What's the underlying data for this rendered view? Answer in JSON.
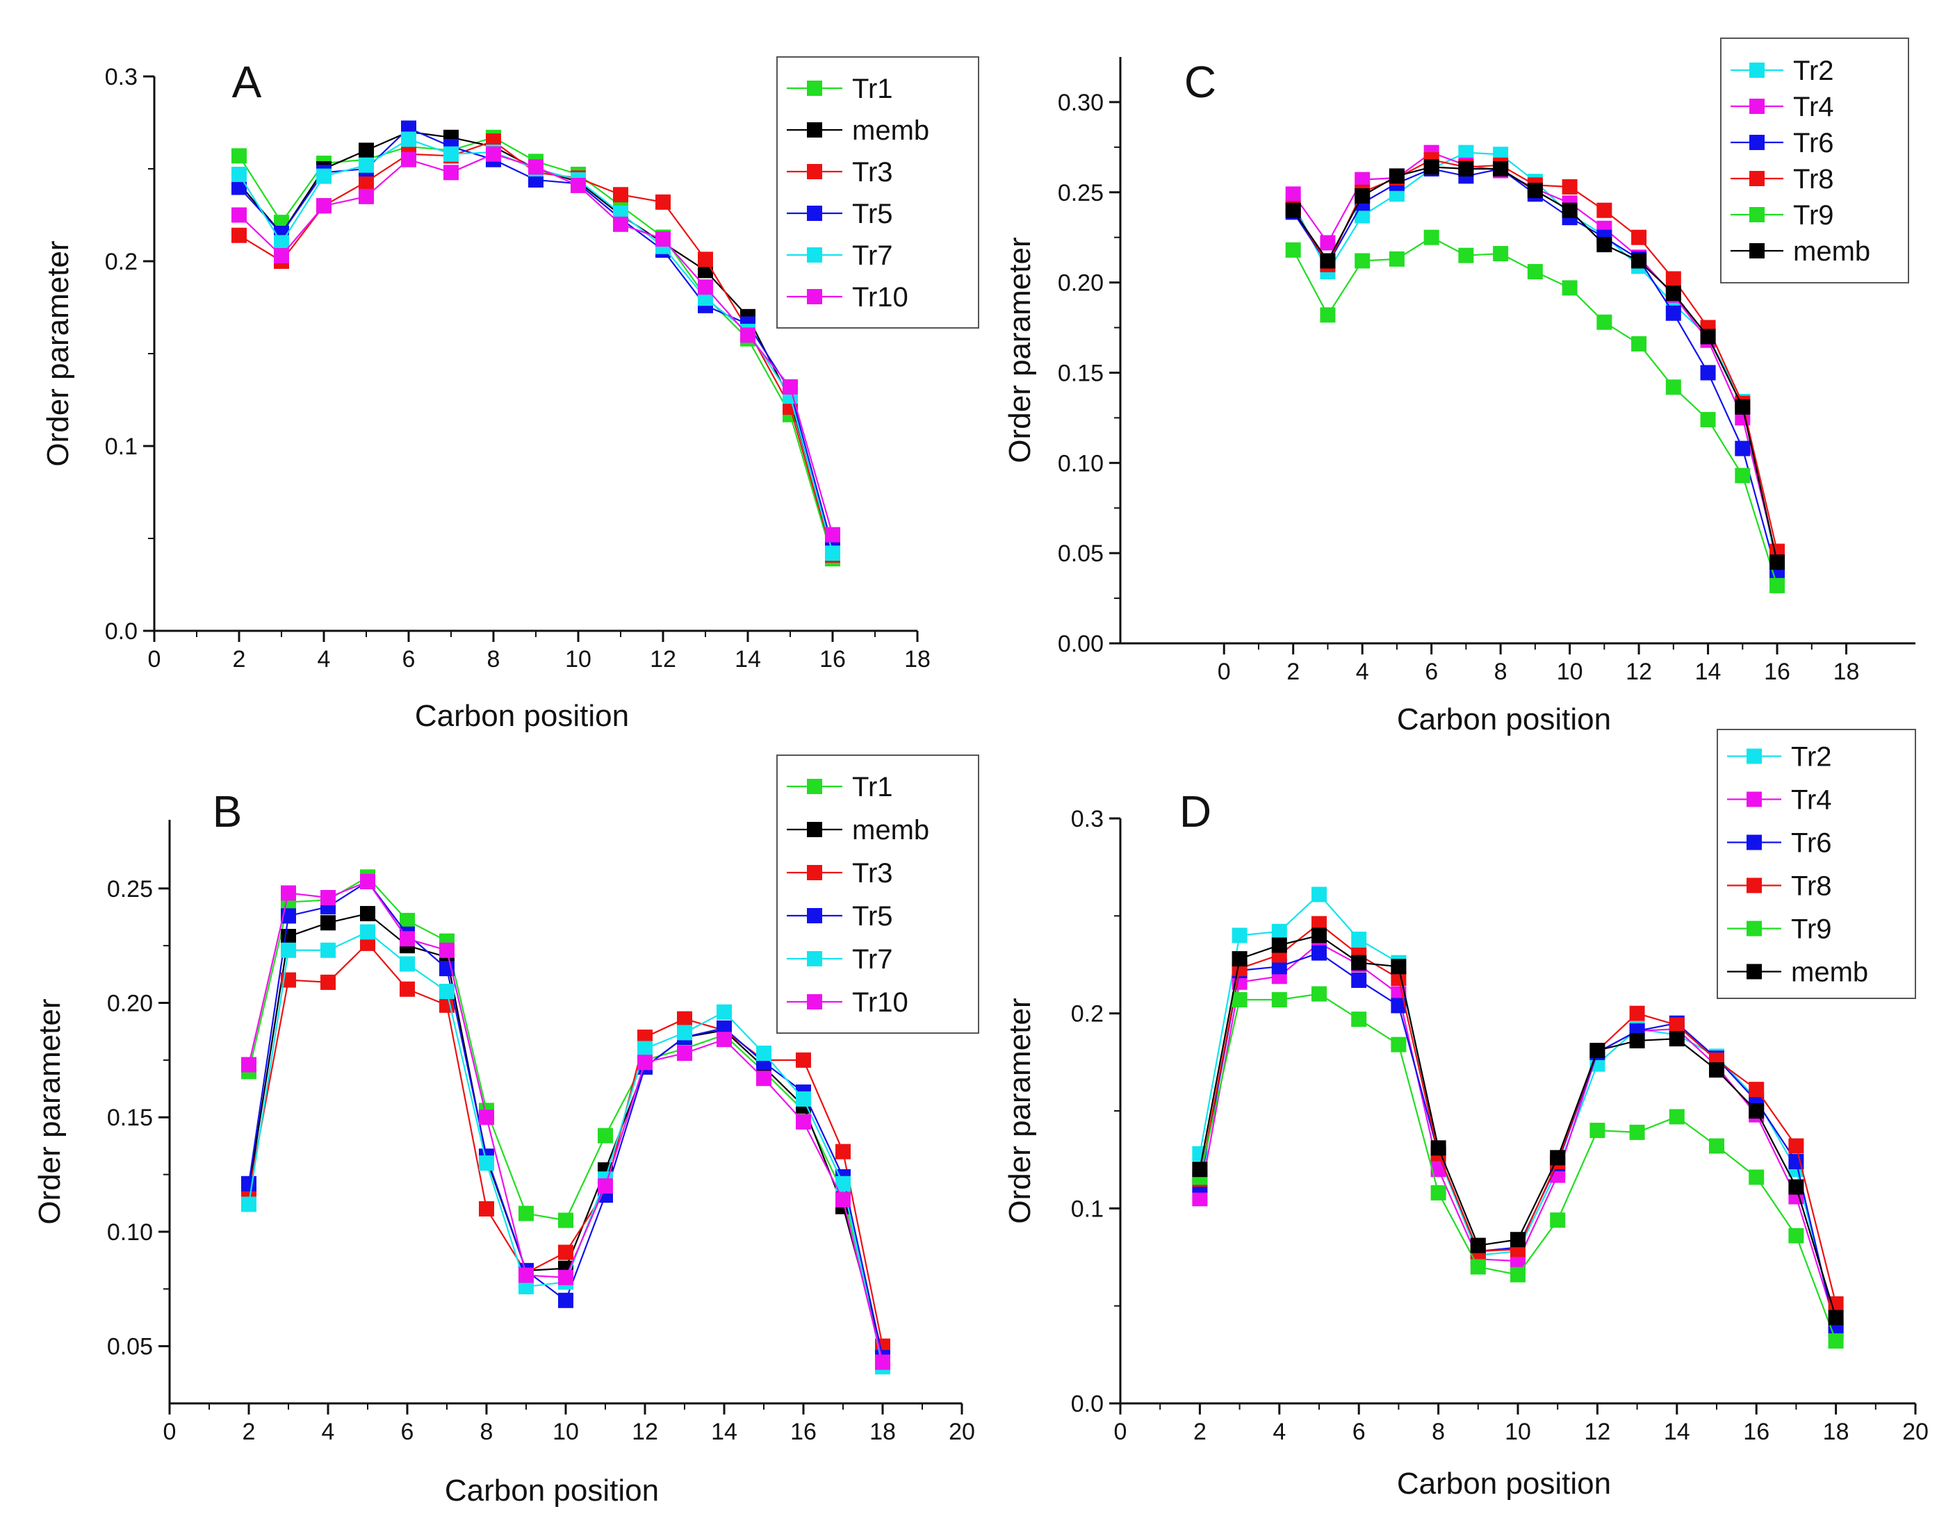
{
  "chart_data": [
    {
      "id": "A",
      "type": "line",
      "label": "A",
      "xlabel": "Carbon position",
      "ylabel": "Order parameter",
      "xlim": [
        0,
        18
      ],
      "ylim": [
        0.0,
        0.3
      ],
      "xticks": [
        "0",
        "2",
        "4",
        "6",
        "8",
        "10",
        "12",
        "14",
        "16",
        "18"
      ],
      "yticks": [
        "0.0",
        "0.1",
        "0.2",
        "0.3"
      ],
      "x": [
        2,
        3,
        4,
        5,
        6,
        7,
        8,
        9,
        10,
        11,
        12,
        13,
        14,
        15,
        16
      ],
      "series": [
        {
          "name": "Tr1",
          "color": "#22dd22",
          "values": [
            0.257,
            0.221,
            0.253,
            0.255,
            0.262,
            0.26,
            0.267,
            0.254,
            0.247,
            0.23,
            0.213,
            0.181,
            0.158,
            0.117,
            0.039
          ]
        },
        {
          "name": "memb",
          "color": "#000000",
          "values": [
            0.242,
            0.215,
            0.25,
            0.26,
            0.27,
            0.267,
            0.262,
            0.25,
            0.243,
            0.225,
            0.21,
            0.195,
            0.17,
            0.125,
            0.044
          ]
        },
        {
          "name": "Tr3",
          "color": "#ee1111",
          "values": [
            0.214,
            0.2,
            0.23,
            0.243,
            0.258,
            0.257,
            0.265,
            0.248,
            0.245,
            0.236,
            0.232,
            0.201,
            0.163,
            0.121,
            0.041
          ]
        },
        {
          "name": "Tr5",
          "color": "#1111ee",
          "values": [
            0.24,
            0.215,
            0.248,
            0.25,
            0.272,
            0.262,
            0.255,
            0.244,
            0.242,
            0.223,
            0.206,
            0.176,
            0.166,
            0.13,
            0.045
          ]
        },
        {
          "name": "Tr7",
          "color": "#11e4ee",
          "values": [
            0.247,
            0.21,
            0.246,
            0.252,
            0.266,
            0.258,
            0.259,
            0.25,
            0.244,
            0.226,
            0.208,
            0.18,
            0.162,
            0.127,
            0.042
          ]
        },
        {
          "name": "Tr10",
          "color": "#ee11ee",
          "values": [
            0.225,
            0.203,
            0.23,
            0.235,
            0.255,
            0.248,
            0.258,
            0.251,
            0.241,
            0.22,
            0.212,
            0.186,
            0.16,
            0.132,
            0.052
          ]
        }
      ]
    },
    {
      "id": "B",
      "type": "line",
      "label": "B",
      "xlabel": "Carbon position",
      "ylabel": "Order parameter",
      "xlim": [
        0,
        20
      ],
      "ylim": [
        0.025,
        0.28
      ],
      "xticks": [
        "0",
        "2",
        "4",
        "6",
        "8",
        "10",
        "12",
        "14",
        "16",
        "18",
        "20"
      ],
      "yticks": [
        "0.05",
        "0.10",
        "0.15",
        "0.20",
        "0.25"
      ],
      "x": [
        2,
        3,
        4,
        5,
        6,
        7,
        8,
        9,
        10,
        11,
        12,
        13,
        14,
        15,
        16,
        17,
        18
      ],
      "series": [
        {
          "name": "Tr1",
          "color": "#22dd22",
          "values": [
            0.17,
            0.244,
            0.245,
            0.255,
            0.236,
            0.227,
            0.153,
            0.108,
            0.105,
            0.142,
            0.175,
            0.18,
            0.186,
            0.17,
            0.153,
            0.117,
            0.046
          ]
        },
        {
          "name": "memb",
          "color": "#000000",
          "values": [
            0.118,
            0.229,
            0.235,
            0.239,
            0.225,
            0.22,
            0.132,
            0.083,
            0.084,
            0.127,
            0.172,
            0.185,
            0.188,
            0.172,
            0.155,
            0.111,
            0.047
          ]
        },
        {
          "name": "Tr3",
          "color": "#ee1111",
          "values": [
            0.117,
            0.21,
            0.209,
            0.226,
            0.206,
            0.199,
            0.11,
            0.082,
            0.091,
            0.118,
            0.185,
            0.193,
            0.188,
            0.175,
            0.175,
            0.135,
            0.05
          ]
        },
        {
          "name": "Tr5",
          "color": "#1111ee",
          "values": [
            0.121,
            0.238,
            0.242,
            0.253,
            0.23,
            0.215,
            0.133,
            0.083,
            0.07,
            0.116,
            0.172,
            0.185,
            0.189,
            0.174,
            0.161,
            0.124,
            0.045
          ]
        },
        {
          "name": "Tr7",
          "color": "#11e4ee",
          "values": [
            0.112,
            0.223,
            0.223,
            0.231,
            0.217,
            0.205,
            0.13,
            0.076,
            0.078,
            0.123,
            0.18,
            0.187,
            0.196,
            0.178,
            0.158,
            0.121,
            0.041
          ]
        },
        {
          "name": "Tr10",
          "color": "#ee11ee",
          "values": [
            0.173,
            0.248,
            0.246,
            0.253,
            0.228,
            0.223,
            0.15,
            0.081,
            0.08,
            0.12,
            0.174,
            0.178,
            0.184,
            0.167,
            0.148,
            0.114,
            0.043
          ]
        }
      ]
    },
    {
      "id": "C",
      "type": "line",
      "label": "C",
      "xlabel": "Carbon position",
      "ylabel": "Order parameter",
      "xlim": [
        -3,
        20
      ],
      "ylim": [
        0.0,
        0.325
      ],
      "xticks": [
        "0",
        "2",
        "4",
        "6",
        "8",
        "10",
        "12",
        "14",
        "16",
        "18"
      ],
      "yticks": [
        "0.00",
        "0.05",
        "0.10",
        "0.15",
        "0.20",
        "0.25",
        "0.30"
      ],
      "x": [
        2,
        3,
        4,
        5,
        6,
        7,
        8,
        9,
        10,
        11,
        12,
        13,
        14,
        15,
        16
      ],
      "series": [
        {
          "name": "Tr2",
          "color": "#11e4ee",
          "values": [
            0.244,
            0.206,
            0.237,
            0.249,
            0.263,
            0.272,
            0.271,
            0.256,
            0.238,
            0.226,
            0.209,
            0.188,
            0.17,
            0.134,
            0.042
          ]
        },
        {
          "name": "Tr4",
          "color": "#ee11ee",
          "values": [
            0.249,
            0.222,
            0.257,
            0.258,
            0.272,
            0.265,
            0.262,
            0.252,
            0.244,
            0.23,
            0.214,
            0.193,
            0.168,
            0.125,
            0.046
          ]
        },
        {
          "name": "Tr6",
          "color": "#1111ee",
          "values": [
            0.239,
            0.21,
            0.244,
            0.255,
            0.263,
            0.259,
            0.263,
            0.249,
            0.236,
            0.225,
            0.213,
            0.183,
            0.15,
            0.108,
            0.038
          ]
        },
        {
          "name": "Tr8",
          "color": "#ee1111",
          "values": [
            0.241,
            0.21,
            0.25,
            0.258,
            0.268,
            0.264,
            0.265,
            0.254,
            0.253,
            0.24,
            0.225,
            0.202,
            0.175,
            0.133,
            0.051
          ]
        },
        {
          "name": "Tr9",
          "color": "#22dd22",
          "values": [
            0.218,
            0.182,
            0.212,
            0.213,
            0.225,
            0.215,
            0.216,
            0.206,
            0.197,
            0.178,
            0.166,
            0.142,
            0.124,
            0.093,
            0.032
          ]
        },
        {
          "name": "memb",
          "color": "#000000",
          "values": [
            0.24,
            0.212,
            0.248,
            0.259,
            0.264,
            0.263,
            0.263,
            0.251,
            0.24,
            0.221,
            0.212,
            0.194,
            0.17,
            0.131,
            0.045
          ]
        }
      ]
    },
    {
      "id": "D",
      "type": "line",
      "label": "D",
      "xlabel": "Carbon position",
      "ylabel": "Order parameter",
      "xlim": [
        0,
        20
      ],
      "ylim": [
        0.0,
        0.3
      ],
      "xticks": [
        "0",
        "2",
        "4",
        "6",
        "8",
        "10",
        "12",
        "14",
        "16",
        "18",
        "20"
      ],
      "yticks": [
        "0.0",
        "0.1",
        "0.2",
        "0.3"
      ],
      "x": [
        2,
        3,
        4,
        5,
        6,
        7,
        8,
        9,
        10,
        11,
        12,
        13,
        14,
        15,
        16,
        17,
        18
      ],
      "series": [
        {
          "name": "Tr2",
          "color": "#11e4ee",
          "values": [
            0.128,
            0.24,
            0.242,
            0.261,
            0.238,
            0.226,
            0.127,
            0.076,
            0.078,
            0.12,
            0.174,
            0.192,
            0.189,
            0.178,
            0.156,
            0.12,
            0.038
          ]
        },
        {
          "name": "Tr4",
          "color": "#ee11ee",
          "values": [
            0.105,
            0.216,
            0.219,
            0.236,
            0.225,
            0.21,
            0.12,
            0.074,
            0.073,
            0.117,
            0.18,
            0.191,
            0.192,
            0.173,
            0.148,
            0.106,
            0.04
          ]
        },
        {
          "name": "Tr6",
          "color": "#1111ee",
          "values": [
            0.112,
            0.222,
            0.224,
            0.231,
            0.217,
            0.204,
            0.128,
            0.078,
            0.08,
            0.123,
            0.18,
            0.191,
            0.195,
            0.177,
            0.155,
            0.124,
            0.037
          ]
        },
        {
          "name": "Tr8",
          "color": "#ee1111",
          "values": [
            0.115,
            0.223,
            0.23,
            0.246,
            0.23,
            0.218,
            0.128,
            0.078,
            0.079,
            0.124,
            0.181,
            0.2,
            0.194,
            0.176,
            0.161,
            0.132,
            0.051
          ]
        },
        {
          "name": "Tr9",
          "color": "#22dd22",
          "values": [
            0.116,
            0.207,
            0.207,
            0.21,
            0.197,
            0.184,
            0.108,
            0.07,
            0.066,
            0.094,
            0.14,
            0.139,
            0.147,
            0.132,
            0.116,
            0.086,
            0.032
          ]
        },
        {
          "name": "memb",
          "color": "#000000",
          "values": [
            0.12,
            0.228,
            0.235,
            0.24,
            0.226,
            0.224,
            0.131,
            0.081,
            0.084,
            0.126,
            0.181,
            0.186,
            0.187,
            0.171,
            0.15,
            0.111,
            0.044
          ]
        }
      ]
    }
  ]
}
